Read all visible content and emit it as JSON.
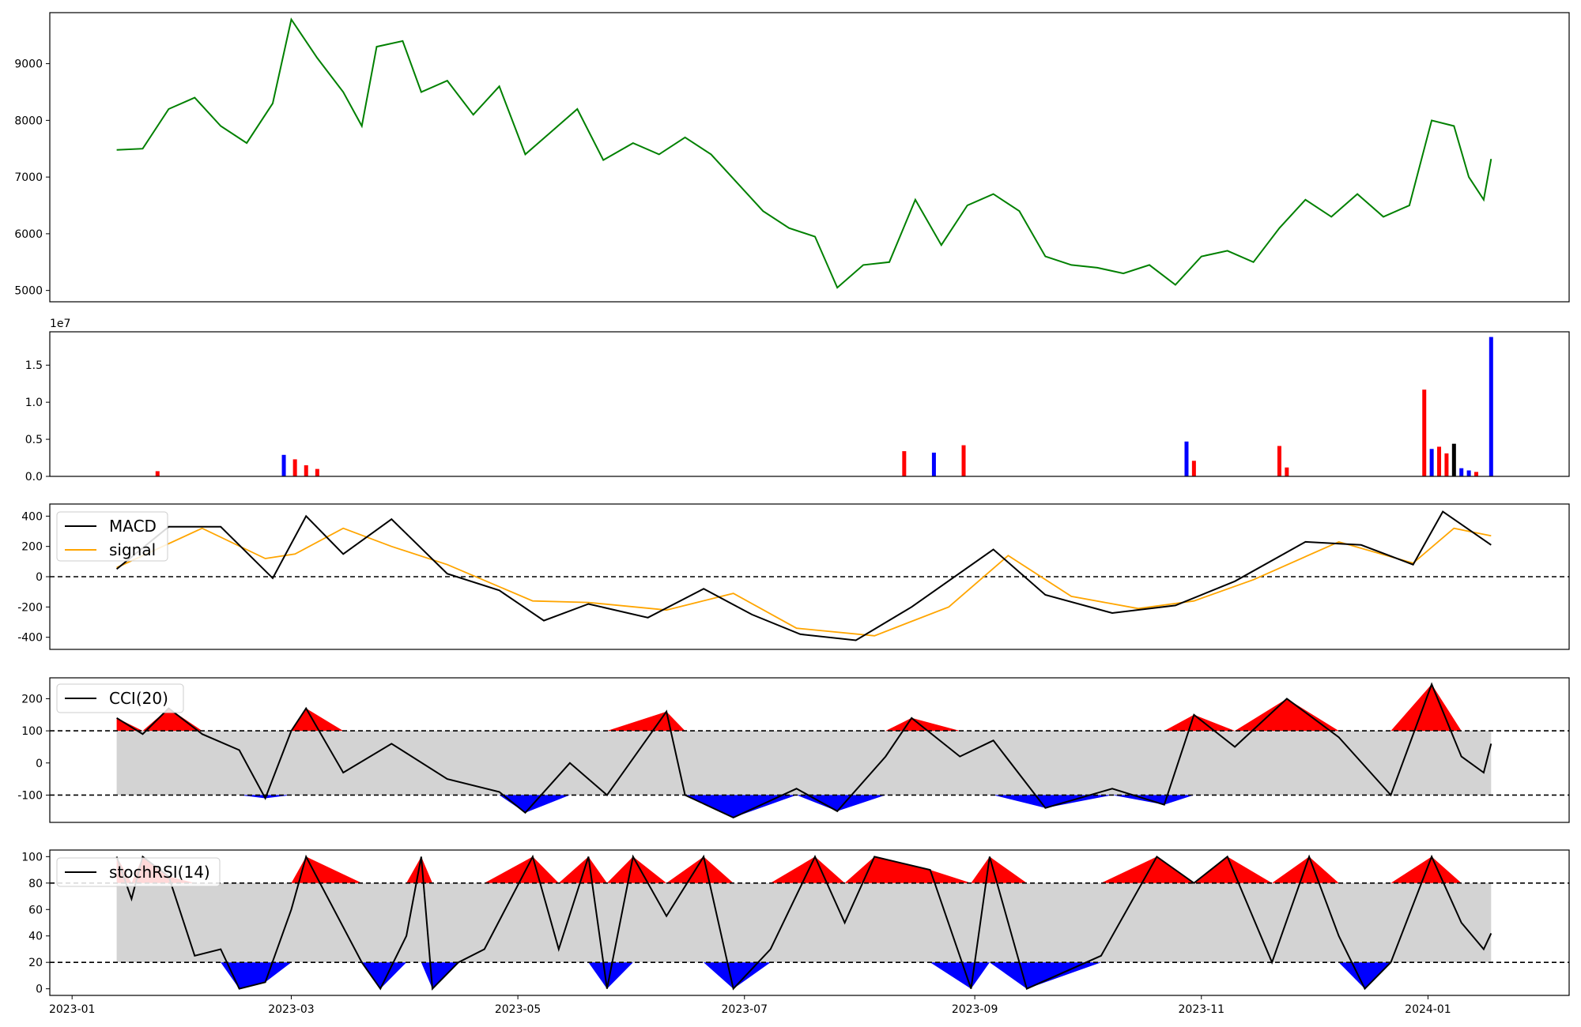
{
  "chart_data": [
    {
      "id": "price",
      "type": "line",
      "ylim": [
        4800,
        9900
      ],
      "yticks": [
        5000,
        6000,
        7000,
        8000,
        9000
      ],
      "series": [
        {
          "color": "#008000",
          "points": [
            [
              "2023-01-13",
              7480
            ],
            [
              "2023-01-20",
              7500
            ],
            [
              "2023-01-27",
              8200
            ],
            [
              "2023-02-03",
              8400
            ],
            [
              "2023-02-10",
              7900
            ],
            [
              "2023-02-17",
              7600
            ],
            [
              "2023-02-24",
              8300
            ],
            [
              "2023-03-01",
              9780
            ],
            [
              "2023-03-08",
              9100
            ],
            [
              "2023-03-15",
              8500
            ],
            [
              "2023-03-20",
              7900
            ],
            [
              "2023-03-24",
              9300
            ],
            [
              "2023-03-31",
              9400
            ],
            [
              "2023-04-05",
              8500
            ],
            [
              "2023-04-12",
              8700
            ],
            [
              "2023-04-19",
              8100
            ],
            [
              "2023-04-26",
              8600
            ],
            [
              "2023-05-03",
              7400
            ],
            [
              "2023-05-10",
              7800
            ],
            [
              "2023-05-17",
              8200
            ],
            [
              "2023-05-24",
              7300
            ],
            [
              "2023-06-01",
              7600
            ],
            [
              "2023-06-08",
              7400
            ],
            [
              "2023-06-15",
              7700
            ],
            [
              "2023-06-22",
              7400
            ],
            [
              "2023-06-29",
              6900
            ],
            [
              "2023-07-06",
              6400
            ],
            [
              "2023-07-13",
              6100
            ],
            [
              "2023-07-20",
              5950
            ],
            [
              "2023-07-26",
              5050
            ],
            [
              "2023-08-02",
              5450
            ],
            [
              "2023-08-09",
              5500
            ],
            [
              "2023-08-16",
              6600
            ],
            [
              "2023-08-23",
              5800
            ],
            [
              "2023-08-30",
              6500
            ],
            [
              "2023-09-06",
              6700
            ],
            [
              "2023-09-13",
              6400
            ],
            [
              "2023-09-20",
              5600
            ],
            [
              "2023-09-27",
              5450
            ],
            [
              "2023-10-04",
              5400
            ],
            [
              "2023-10-11",
              5300
            ],
            [
              "2023-10-18",
              5450
            ],
            [
              "2023-10-25",
              5100
            ],
            [
              "2023-11-01",
              5600
            ],
            [
              "2023-11-08",
              5700
            ],
            [
              "2023-11-15",
              5500
            ],
            [
              "2023-11-22",
              6100
            ],
            [
              "2023-11-29",
              6600
            ],
            [
              "2023-12-06",
              6300
            ],
            [
              "2023-12-13",
              6700
            ],
            [
              "2023-12-20",
              6300
            ],
            [
              "2023-12-27",
              6500
            ],
            [
              "2024-01-02",
              8000
            ],
            [
              "2024-01-08",
              7900
            ],
            [
              "2024-01-12",
              7000
            ],
            [
              "2024-01-16",
              6600
            ],
            [
              "2024-01-18",
              7320
            ]
          ]
        }
      ]
    },
    {
      "id": "volume",
      "type": "bar",
      "ylim": [
        0,
        19500000
      ],
      "yticks": [
        0,
        5000000,
        10000000,
        15000000
      ],
      "ytick_labels": [
        "0.0",
        "0.5",
        "1.0",
        "1.5"
      ],
      "offset_text": "1e7",
      "bars": [
        [
          "2023-02-27",
          2900000,
          "#0000ff"
        ],
        [
          "2023-03-02",
          2300000,
          "#ff0000"
        ],
        [
          "2023-03-05",
          1500000,
          "#ff0000"
        ],
        [
          "2023-03-08",
          1000000,
          "#ff0000"
        ],
        [
          "2023-01-24",
          700000,
          "#ff0000"
        ],
        [
          "2023-08-13",
          3400000,
          "#ff0000"
        ],
        [
          "2023-08-21",
          3200000,
          "#0000ff"
        ],
        [
          "2023-08-29",
          4200000,
          "#ff0000"
        ],
        [
          "2023-10-28",
          4700000,
          "#0000ff"
        ],
        [
          "2023-10-30",
          2100000,
          "#ff0000"
        ],
        [
          "2023-11-22",
          4100000,
          "#ff0000"
        ],
        [
          "2023-11-24",
          1200000,
          "#ff0000"
        ],
        [
          "2023-12-31",
          11700000,
          "#ff0000"
        ],
        [
          "2024-01-02",
          3700000,
          "#0000ff"
        ],
        [
          "2024-01-04",
          4000000,
          "#ff0000"
        ],
        [
          "2024-01-06",
          3100000,
          "#ff0000"
        ],
        [
          "2024-01-08",
          4400000,
          "#000000"
        ],
        [
          "2024-01-10",
          1100000,
          "#0000ff"
        ],
        [
          "2024-01-12",
          800000,
          "#0000ff"
        ],
        [
          "2024-01-14",
          600000,
          "#ff0000"
        ],
        [
          "2024-01-18",
          18800000,
          "#0000ff"
        ]
      ]
    },
    {
      "id": "macd",
      "type": "line",
      "ylim": [
        -480,
        480
      ],
      "yticks": [
        -400,
        -200,
        0,
        200,
        400
      ],
      "legend": [
        "MACD",
        "signal"
      ],
      "macd": [
        [
          "2023-01-13",
          50
        ],
        [
          "2023-01-27",
          330
        ],
        [
          "2023-02-10",
          330
        ],
        [
          "2023-02-24",
          -10
        ],
        [
          "2023-03-05",
          400
        ],
        [
          "2023-03-15",
          150
        ],
        [
          "2023-03-28",
          380
        ],
        [
          "2023-04-12",
          20
        ],
        [
          "2023-04-26",
          -90
        ],
        [
          "2023-05-08",
          -290
        ],
        [
          "2023-05-20",
          -180
        ],
        [
          "2023-06-05",
          -270
        ],
        [
          "2023-06-20",
          -80
        ],
        [
          "2023-07-03",
          -250
        ],
        [
          "2023-07-16",
          -380
        ],
        [
          "2023-07-31",
          -420
        ],
        [
          "2023-08-15",
          -200
        ],
        [
          "2023-09-06",
          180
        ],
        [
          "2023-09-20",
          -120
        ],
        [
          "2023-10-08",
          -240
        ],
        [
          "2023-10-25",
          -190
        ],
        [
          "2023-11-10",
          -30
        ],
        [
          "2023-11-29",
          230
        ],
        [
          "2023-12-14",
          210
        ],
        [
          "2023-12-28",
          80
        ],
        [
          "2024-01-05",
          430
        ],
        [
          "2024-01-18",
          210
        ]
      ],
      "signal": [
        [
          "2023-01-13",
          60
        ],
        [
          "2023-02-05",
          320
        ],
        [
          "2023-02-22",
          120
        ],
        [
          "2023-03-02",
          150
        ],
        [
          "2023-03-15",
          320
        ],
        [
          "2023-03-28",
          200
        ],
        [
          "2023-04-12",
          80
        ],
        [
          "2023-05-05",
          -160
        ],
        [
          "2023-05-20",
          -170
        ],
        [
          "2023-06-10",
          -220
        ],
        [
          "2023-06-28",
          -110
        ],
        [
          "2023-07-15",
          -340
        ],
        [
          "2023-08-05",
          -390
        ],
        [
          "2023-08-25",
          -200
        ],
        [
          "2023-09-10",
          140
        ],
        [
          "2023-09-27",
          -130
        ],
        [
          "2023-10-15",
          -210
        ],
        [
          "2023-10-30",
          -160
        ],
        [
          "2023-11-15",
          -20
        ],
        [
          "2023-12-08",
          230
        ],
        [
          "2023-12-28",
          90
        ],
        [
          "2024-01-08",
          320
        ],
        [
          "2024-01-18",
          270
        ]
      ]
    },
    {
      "id": "cci",
      "type": "line",
      "ylim": [
        -185,
        265
      ],
      "yticks": [
        -100,
        0,
        100,
        200
      ],
      "thresholds": [
        100,
        -100
      ],
      "legend": [
        "CCI(20)"
      ],
      "series": [
        [
          "2023-01-13",
          140
        ],
        [
          "2023-01-20",
          90
        ],
        [
          "2023-01-27",
          170
        ],
        [
          "2023-02-05",
          90
        ],
        [
          "2023-02-15",
          40
        ],
        [
          "2023-02-22",
          -110
        ],
        [
          "2023-03-01",
          100
        ],
        [
          "2023-03-05",
          170
        ],
        [
          "2023-03-15",
          -30
        ],
        [
          "2023-03-28",
          60
        ],
        [
          "2023-04-12",
          -50
        ],
        [
          "2023-04-26",
          -90
        ],
        [
          "2023-05-03",
          -155
        ],
        [
          "2023-05-15",
          0
        ],
        [
          "2023-05-25",
          -100
        ],
        [
          "2023-06-10",
          160
        ],
        [
          "2023-06-15",
          -100
        ],
        [
          "2023-06-28",
          -170
        ],
        [
          "2023-07-15",
          -80
        ],
        [
          "2023-07-26",
          -150
        ],
        [
          "2023-08-08",
          20
        ],
        [
          "2023-08-15",
          140
        ],
        [
          "2023-08-28",
          20
        ],
        [
          "2023-09-06",
          70
        ],
        [
          "2023-09-20",
          -140
        ],
        [
          "2023-10-08",
          -80
        ],
        [
          "2023-10-22",
          -130
        ],
        [
          "2023-10-30",
          150
        ],
        [
          "2023-11-10",
          50
        ],
        [
          "2023-11-24",
          200
        ],
        [
          "2023-12-08",
          80
        ],
        [
          "2023-12-22",
          -100
        ],
        [
          "2024-01-02",
          245
        ],
        [
          "2024-01-10",
          20
        ],
        [
          "2024-01-16",
          -30
        ],
        [
          "2024-01-18",
          60
        ]
      ]
    },
    {
      "id": "stochrsi",
      "type": "line",
      "ylim": [
        -5,
        105
      ],
      "yticks": [
        0,
        20,
        40,
        60,
        80,
        100
      ],
      "thresholds": [
        80,
        20
      ],
      "legend": [
        "stochRSI(14)"
      ],
      "xlim": [
        "2022-12-26",
        "2024-02-08"
      ],
      "xticks": [
        "2023-01",
        "2023-03",
        "2023-05",
        "2023-07",
        "2023-09",
        "2023-11",
        "2024-01"
      ],
      "series": [
        [
          "2023-01-13",
          100
        ],
        [
          "2023-01-17",
          68
        ],
        [
          "2023-01-20",
          100
        ],
        [
          "2023-01-27",
          85
        ],
        [
          "2023-02-03",
          25
        ],
        [
          "2023-02-10",
          30
        ],
        [
          "2023-02-15",
          0
        ],
        [
          "2023-02-22",
          5
        ],
        [
          "2023-03-01",
          60
        ],
        [
          "2023-03-05",
          100
        ],
        [
          "2023-03-20",
          20
        ],
        [
          "2023-03-25",
          0
        ],
        [
          "2023-04-01",
          40
        ],
        [
          "2023-04-05",
          100
        ],
        [
          "2023-04-08",
          0
        ],
        [
          "2023-04-15",
          20
        ],
        [
          "2023-04-22",
          30
        ],
        [
          "2023-05-05",
          100
        ],
        [
          "2023-05-12",
          30
        ],
        [
          "2023-05-20",
          100
        ],
        [
          "2023-05-25",
          0
        ],
        [
          "2023-06-01",
          100
        ],
        [
          "2023-06-10",
          55
        ],
        [
          "2023-06-20",
          100
        ],
        [
          "2023-06-28",
          0
        ],
        [
          "2023-07-08",
          30
        ],
        [
          "2023-07-20",
          100
        ],
        [
          "2023-07-28",
          50
        ],
        [
          "2023-08-05",
          100
        ],
        [
          "2023-08-20",
          90
        ],
        [
          "2023-08-31",
          0
        ],
        [
          "2023-09-05",
          100
        ],
        [
          "2023-09-15",
          0
        ],
        [
          "2023-10-05",
          25
        ],
        [
          "2023-10-20",
          100
        ],
        [
          "2023-10-30",
          80
        ],
        [
          "2023-11-08",
          100
        ],
        [
          "2023-11-20",
          20
        ],
        [
          "2023-11-30",
          100
        ],
        [
          "2023-12-08",
          40
        ],
        [
          "2023-12-15",
          0
        ],
        [
          "2023-12-22",
          20
        ],
        [
          "2024-01-02",
          100
        ],
        [
          "2024-01-10",
          50
        ],
        [
          "2024-01-16",
          30
        ],
        [
          "2024-01-18",
          42
        ]
      ]
    }
  ]
}
